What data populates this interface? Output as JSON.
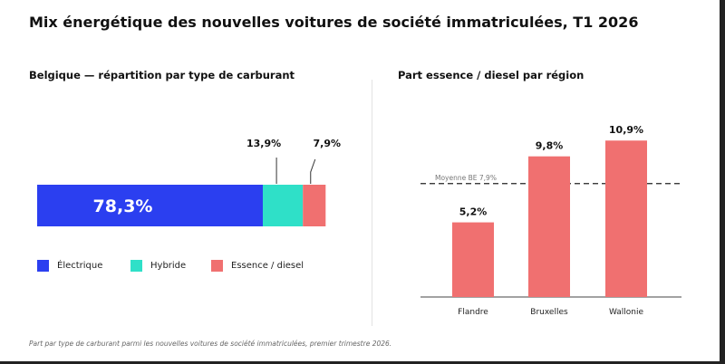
{
  "title": "Mix énergétique des nouvelles voitures de société immatriculées, T1 2026",
  "footnote": "Part par type de carburant parmi les nouvelles voitures de société immatriculées, premier trimestre 2026.",
  "chart_data": [
    {
      "type": "bar",
      "orientation": "horizontal-stacked",
      "title": "Belgique — répartition par type de carburant",
      "series": [
        {
          "name": "Électrique",
          "value": 78.3,
          "label": "78,3%",
          "color": "#2b3ff0"
        },
        {
          "name": "Hybride",
          "value": 13.9,
          "label": "13,9%",
          "color": "#2fe0c8"
        },
        {
          "name": "Essence / diesel",
          "value": 7.9,
          "label": "7,9%",
          "color": "#f07070"
        }
      ],
      "xlim": [
        0,
        100
      ],
      "legend": "bottom"
    },
    {
      "type": "bar",
      "title": "Part essence / diesel par région",
      "categories": [
        "Flandre",
        "Bruxelles",
        "Wallonie"
      ],
      "values": [
        5.2,
        9.8,
        10.9
      ],
      "value_labels": [
        "5,2%",
        "9,8%",
        "10,9%"
      ],
      "color": "#f07070",
      "reference_line": {
        "value": 7.9,
        "label": "Moyenne BE 7,9%"
      },
      "ylim": [
        0,
        12
      ]
    }
  ]
}
